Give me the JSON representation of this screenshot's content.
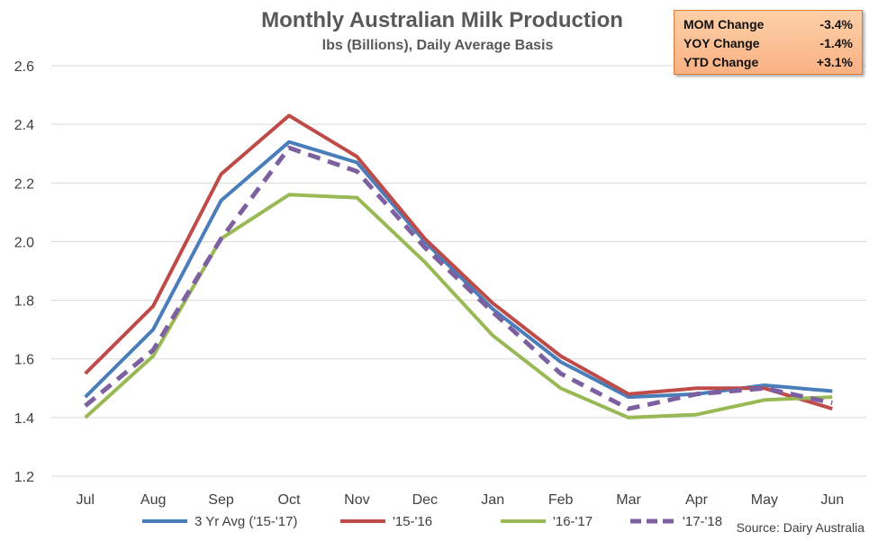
{
  "chart_data": {
    "type": "line",
    "title": "Monthly Australian Milk Production",
    "subtitle": "lbs (Billions), Daily Average Basis",
    "categories": [
      "Jul",
      "Aug",
      "Sep",
      "Oct",
      "Nov",
      "Dec",
      "Jan",
      "Feb",
      "Mar",
      "Apr",
      "May",
      "Jun"
    ],
    "ylim": [
      1.2,
      2.6
    ],
    "yticks": [
      "1.2",
      "1.4",
      "1.6",
      "1.8",
      "2.0",
      "2.2",
      "2.4",
      "2.6"
    ],
    "grid": true,
    "legend_position": "bottom",
    "series": [
      {
        "name": "3 Yr Avg ('15-'17)",
        "color": "#4a7ebb",
        "dashed": false,
        "values": [
          1.47,
          1.7,
          2.14,
          2.34,
          2.27,
          2.0,
          1.77,
          1.59,
          1.47,
          1.48,
          1.51,
          1.49
        ]
      },
      {
        "name": "'15-'16",
        "color": "#be4b48",
        "dashed": false,
        "values": [
          1.55,
          1.78,
          2.23,
          2.43,
          2.29,
          2.01,
          1.79,
          1.61,
          1.48,
          1.5,
          1.5,
          1.43
        ]
      },
      {
        "name": "'16-'17",
        "color": "#98b954",
        "dashed": false,
        "values": [
          1.4,
          1.61,
          2.01,
          2.16,
          2.15,
          1.93,
          1.68,
          1.5,
          1.4,
          1.41,
          1.46,
          1.47
        ]
      },
      {
        "name": "'17-'18",
        "color": "#7d60a0",
        "dashed": true,
        "values": [
          1.44,
          1.63,
          2.01,
          2.32,
          2.24,
          1.98,
          1.76,
          1.55,
          1.43,
          1.48,
          1.5,
          1.45
        ]
      }
    ],
    "source": "Source: Dairy Australia"
  },
  "stats": [
    {
      "label": "MOM Change",
      "value": "-3.4%"
    },
    {
      "label": "YOY Change",
      "value": "-1.4%"
    },
    {
      "label": "YTD Change",
      "value": "+3.1%"
    }
  ]
}
